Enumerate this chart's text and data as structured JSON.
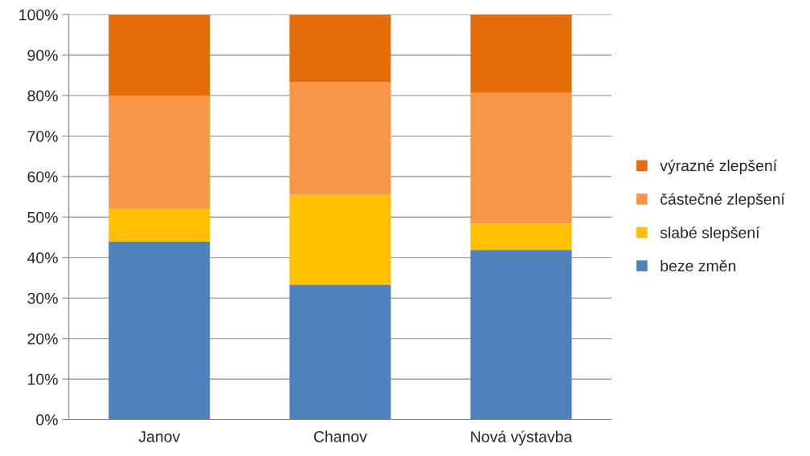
{
  "chart_data": {
    "type": "bar",
    "stacked": true,
    "categories": [
      "Janov",
      "Chanov",
      "Nová výstavba"
    ],
    "series": [
      {
        "name": "beze změn",
        "color": "#4f81bd",
        "values": [
          44,
          33.3,
          41.9
        ]
      },
      {
        "name": "slabé slepšení",
        "color": "#ffc000",
        "values": [
          8,
          22.2,
          6.5
        ]
      },
      {
        "name": "částečné zlepšení",
        "color": "#f79646",
        "values": [
          28,
          27.8,
          32.3
        ]
      },
      {
        "name": "výrazné zlepšení",
        "color": "#e46c0a",
        "values": [
          20,
          16.7,
          19.4
        ]
      }
    ],
    "ylim": [
      0,
      100
    ],
    "yticks": [
      {
        "value": 0,
        "label": "0%"
      },
      {
        "value": 10,
        "label": "10%"
      },
      {
        "value": 20,
        "label": "20%"
      },
      {
        "value": 30,
        "label": "30%"
      },
      {
        "value": 40,
        "label": "40%"
      },
      {
        "value": 50,
        "label": "50%"
      },
      {
        "value": 60,
        "label": "60%"
      },
      {
        "value": 70,
        "label": "70%"
      },
      {
        "value": 80,
        "label": "80%"
      },
      {
        "value": 90,
        "label": "90%"
      },
      {
        "value": 100,
        "label": "100%"
      }
    ],
    "grid": "y",
    "legend": "right"
  }
}
